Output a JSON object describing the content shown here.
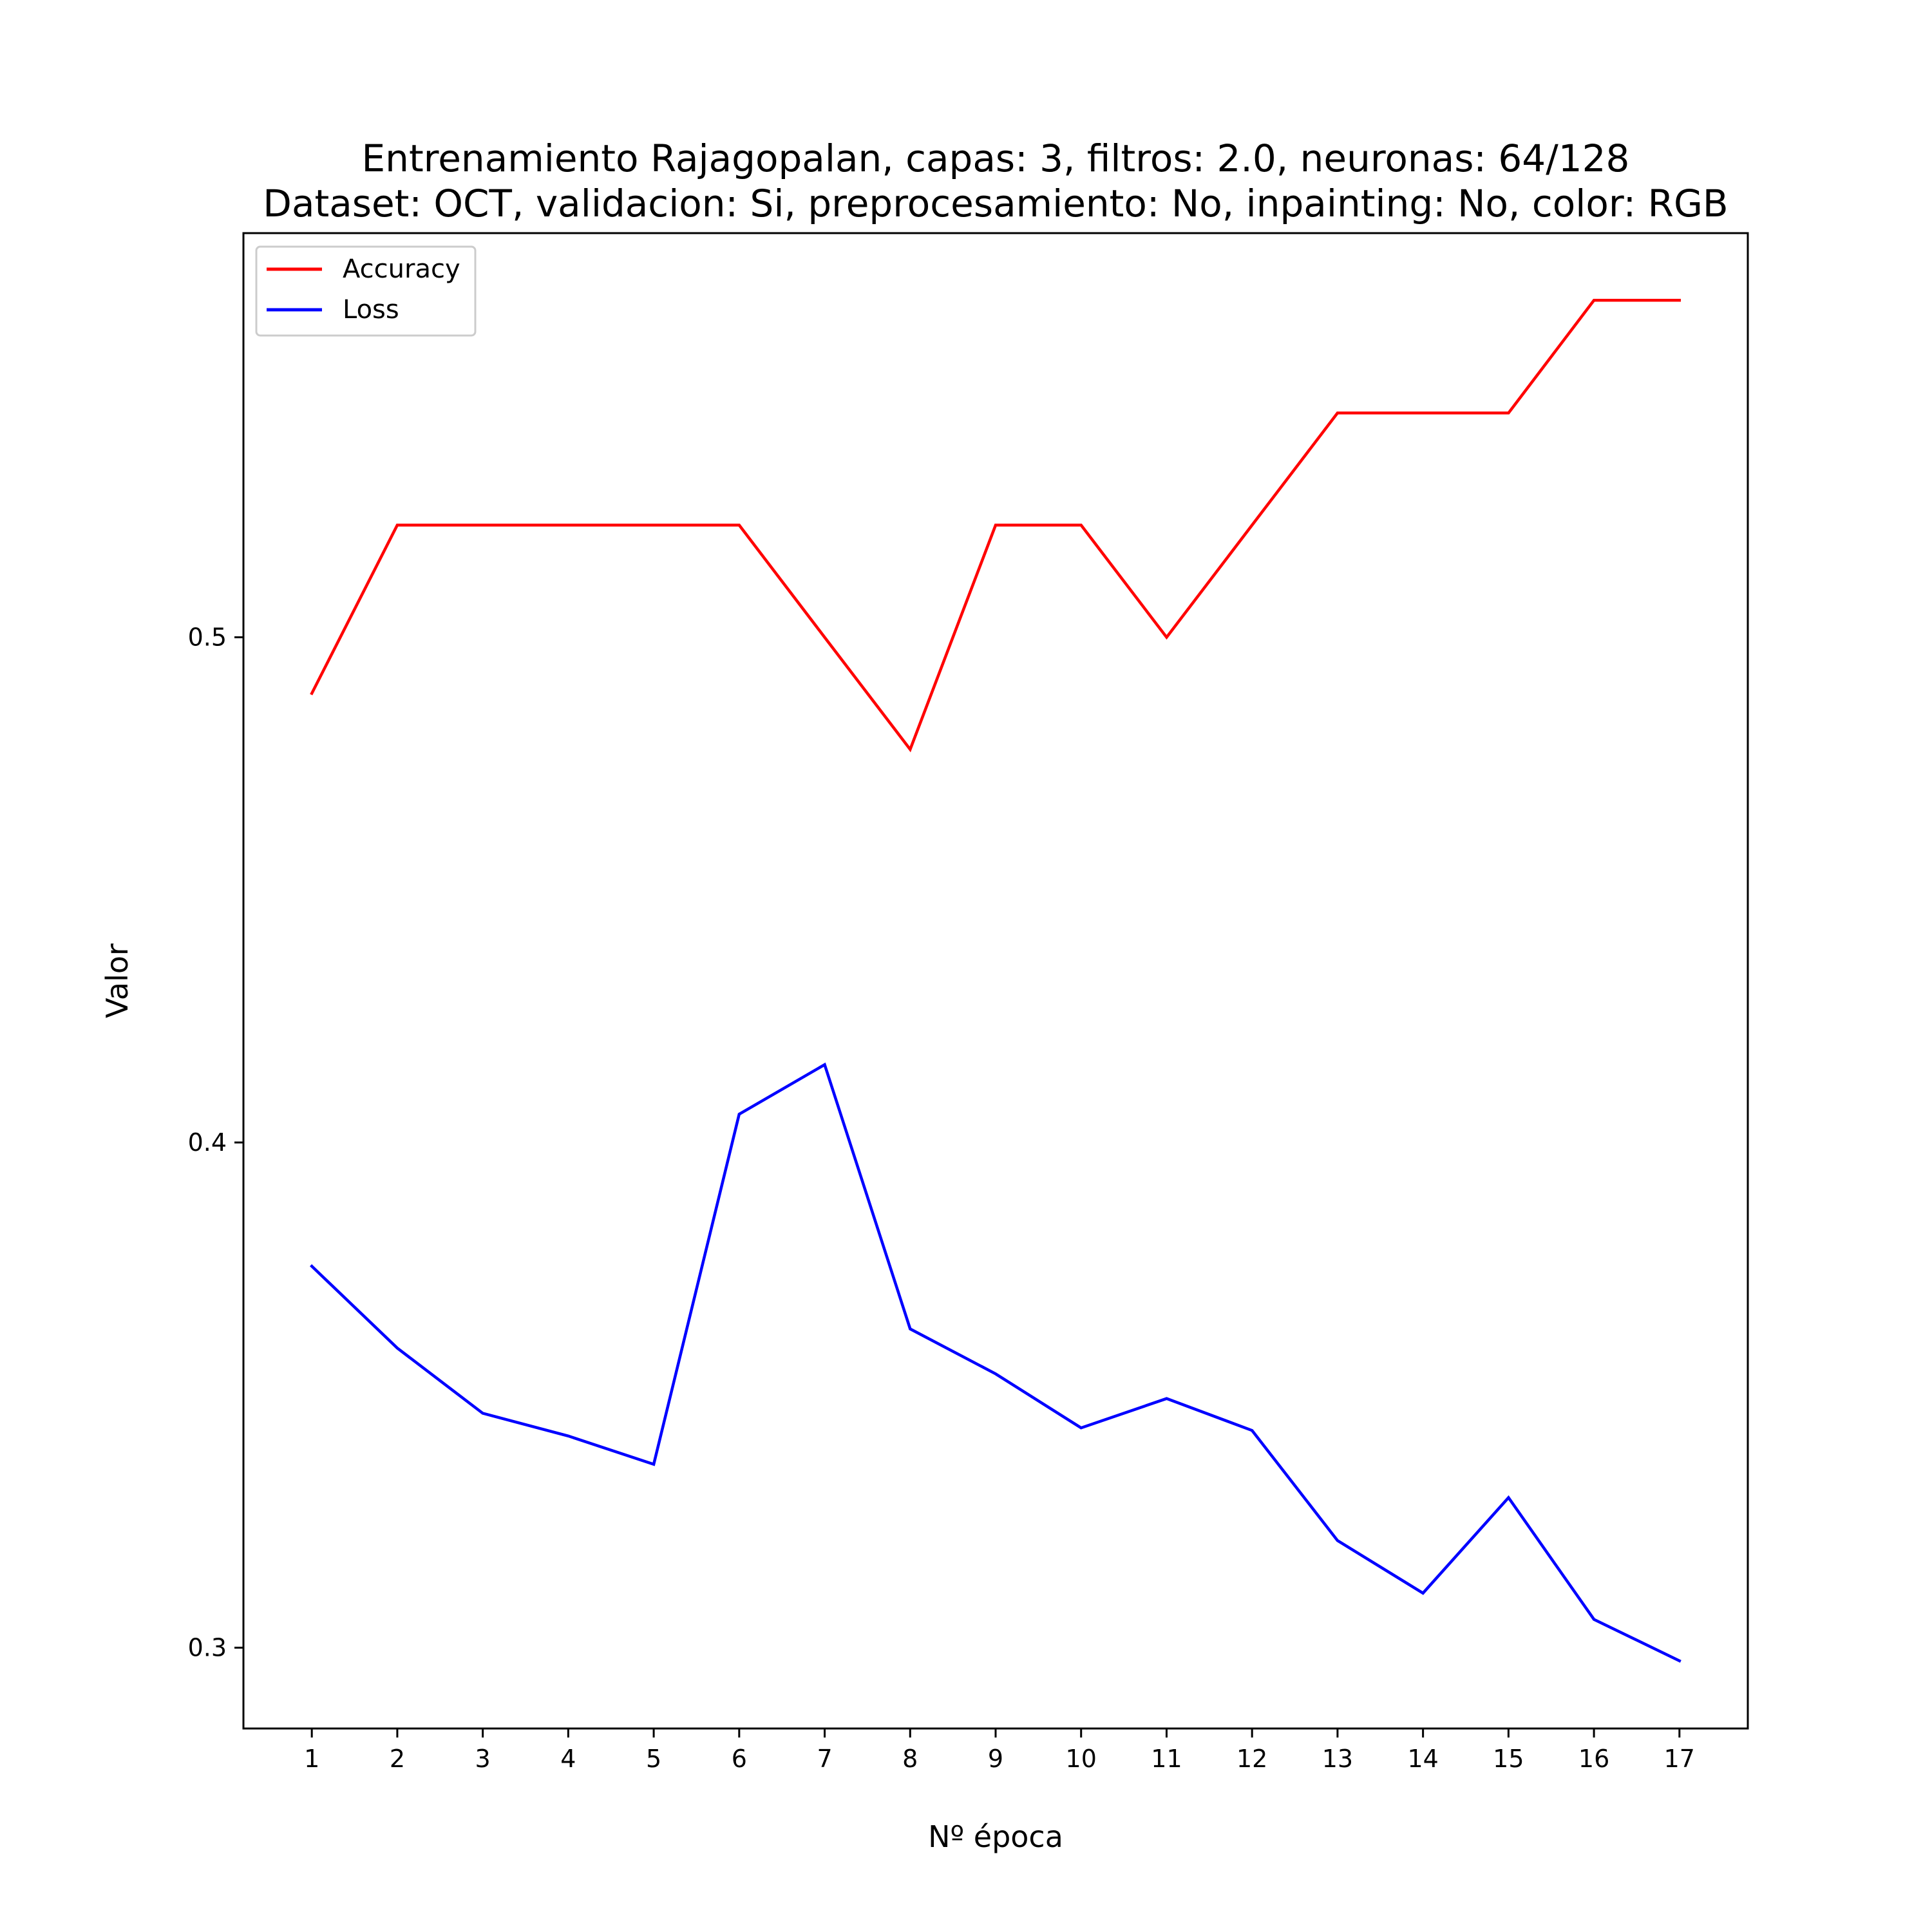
{
  "chart_data": {
    "type": "line",
    "title": "Entrenamiento Rajagopalan, capas: 3, filtros: 2.0, neuronas: 64/128",
    "subtitle": "Dataset: OCT, validacion: Si, preprocesamiento: No, inpainting: No, color: RGB",
    "xlabel": "Nº época",
    "ylabel": "Valor",
    "x": [
      1,
      2,
      3,
      4,
      5,
      6,
      7,
      8,
      9,
      10,
      11,
      12,
      13,
      14,
      15,
      16,
      17
    ],
    "x_tick_labels": [
      "1",
      "2",
      "3",
      "4",
      "5",
      "6",
      "7",
      "8",
      "9",
      "10",
      "11",
      "12",
      "13",
      "14",
      "15",
      "16",
      "17"
    ],
    "y_ticks": [
      0.3,
      0.4,
      0.5
    ],
    "y_tick_labels": [
      "0.3",
      "0.4",
      "0.5"
    ],
    "xlim": [
      0.2,
      17.8
    ],
    "ylim": [
      0.284,
      0.58
    ],
    "grid": false,
    "legend_position": "top-left",
    "series": [
      {
        "name": "Accuracy",
        "color": "#ff0000",
        "values": [
          0.4889,
          0.5222,
          0.5222,
          0.5222,
          0.5222,
          0.5222,
          0.5,
          0.4778,
          0.5222,
          0.5222,
          0.5,
          0.5222,
          0.5444,
          0.5444,
          0.5444,
          0.5667,
          0.5667
        ]
      },
      {
        "name": "Loss",
        "color": "#0000ff",
        "values": [
          0.3755,
          0.3593,
          0.3464,
          0.3419,
          0.3363,
          0.4056,
          0.4154,
          0.3631,
          0.3542,
          0.3435,
          0.3493,
          0.343,
          0.3212,
          0.3108,
          0.3297,
          0.3056,
          0.2974
        ]
      }
    ]
  }
}
